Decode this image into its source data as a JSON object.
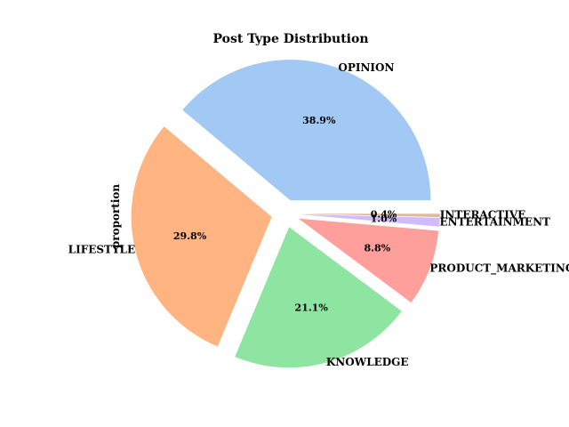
{
  "chart_data": {
    "type": "pie",
    "title": "Post Type Distribution",
    "ylabel": "proportion",
    "categories": [
      "OPINION",
      "LIFESTYLE",
      "KNOWLEDGE",
      "PRODUCT_MARKETING",
      "ENTERTAINMENT",
      "INTERACTIVE"
    ],
    "values": [
      38.9,
      29.8,
      21.1,
      8.8,
      1.0,
      0.4
    ],
    "value_labels": [
      "38.9%",
      "29.8%",
      "21.1%",
      "8.8%",
      "1.0%",
      "0.4%"
    ],
    "colors": [
      "#a1c9f4",
      "#ffb482",
      "#8de5a1",
      "#ff9f9b",
      "#d0bbff",
      "#debb9b"
    ],
    "exploded": true,
    "start_angle": "0 deg, counter-clockwise",
    "grid": false,
    "legend": "none"
  }
}
